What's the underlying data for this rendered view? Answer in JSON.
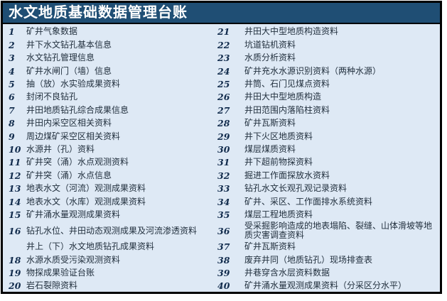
{
  "title": "水文地质基础数据管理台账",
  "colors": {
    "header_bg": "#1f4e74",
    "body_bg": "#dee9f5",
    "border": "#000000",
    "title_text": "#ffffff",
    "number_text": "#122c4d",
    "item_text": "#22303e"
  },
  "ledger": {
    "rows": [
      {
        "ln": "1",
        "lt": "矿井气象数据",
        "rn": "21",
        "rt": "井田大中型地质构造资料"
      },
      {
        "ln": "2",
        "lt": "井下水文钻孔基本信息",
        "rn": "22",
        "rt": "坑道钻机资料"
      },
      {
        "ln": "3",
        "lt": "水文钻孔管理信息",
        "rn": "23",
        "rt": "水质分析资料"
      },
      {
        "ln": "4",
        "lt": "矿井水闸门（墙）信息",
        "rn": "24",
        "rt": "矿井充水水源识别资料（两种水源）"
      },
      {
        "ln": "5",
        "lt": "抽（放）水实验成果资料",
        "rn": "25",
        "rt": "井筒、石门见煤点资料"
      },
      {
        "ln": "6",
        "lt": "封闭不良钻孔",
        "rn": "26",
        "rt": "井田大中型地质构造"
      },
      {
        "ln": "7",
        "lt": "井田地质钻孔综合成果信息",
        "rn": "27",
        "rt": "井田范围内落陷柱资料"
      },
      {
        "ln": "8",
        "lt": "井田内采空区相关资料",
        "rn": "28",
        "rt": "矿井瓦斯资料"
      },
      {
        "ln": "9",
        "lt": "周边煤矿采空区相关资料",
        "rn": "29",
        "rt": "井下火区地质资料"
      },
      {
        "ln": "10",
        "lt": "水源井（孔）资料",
        "rn": "30",
        "rt": "煤层煤质资料"
      },
      {
        "ln": "11",
        "lt": "矿井突（涌）水点观测资料",
        "rn": "31",
        "rt": "井下超前物探资料"
      },
      {
        "ln": "12",
        "lt": "矿井突（涌）水点信息",
        "rn": "32",
        "rt": "掘进工作面探放水资料"
      },
      {
        "ln": "13",
        "lt": "地表水文（河流）观测成果资料",
        "rn": "33",
        "rt": "钻孔水文长观孔观记录资料"
      },
      {
        "ln": "14",
        "lt": "地表水文（水库）观测成果资料",
        "rn": "34",
        "rt": "矿井、采区、工作面排水系统资料"
      },
      {
        "ln": "15",
        "lt": "矿井涌水量观测成果资料",
        "rn": "35",
        "rt": "煤层工程地质资料"
      },
      {
        "ln": "16",
        "lt": "钻孔水位、井田动态观测成果及河流渗透资料",
        "rn": "36",
        "rt": "受采掘影响造成的地表塌陷、裂缝、山体滑坡等地质灾害调查资料"
      },
      {
        "ln": "",
        "lt": "井上（下）水文地质钻孔成果资料",
        "rn": "37",
        "rt": "矿井瓦斯资料"
      },
      {
        "ln": "18",
        "lt": "水源水质受污染观测资料",
        "rn": "38",
        "rt": "废弃井同（地质钻孔）现场排查表"
      },
      {
        "ln": "19",
        "lt": "物探成果验证台账",
        "rn": "39",
        "rt": "井巷穿含水层资料数据"
      },
      {
        "ln": "20",
        "lt": "岩石裂隙资料",
        "rn": "40",
        "rt": "矿井涌水量观测成果资料（分采区分水平）"
      }
    ]
  }
}
